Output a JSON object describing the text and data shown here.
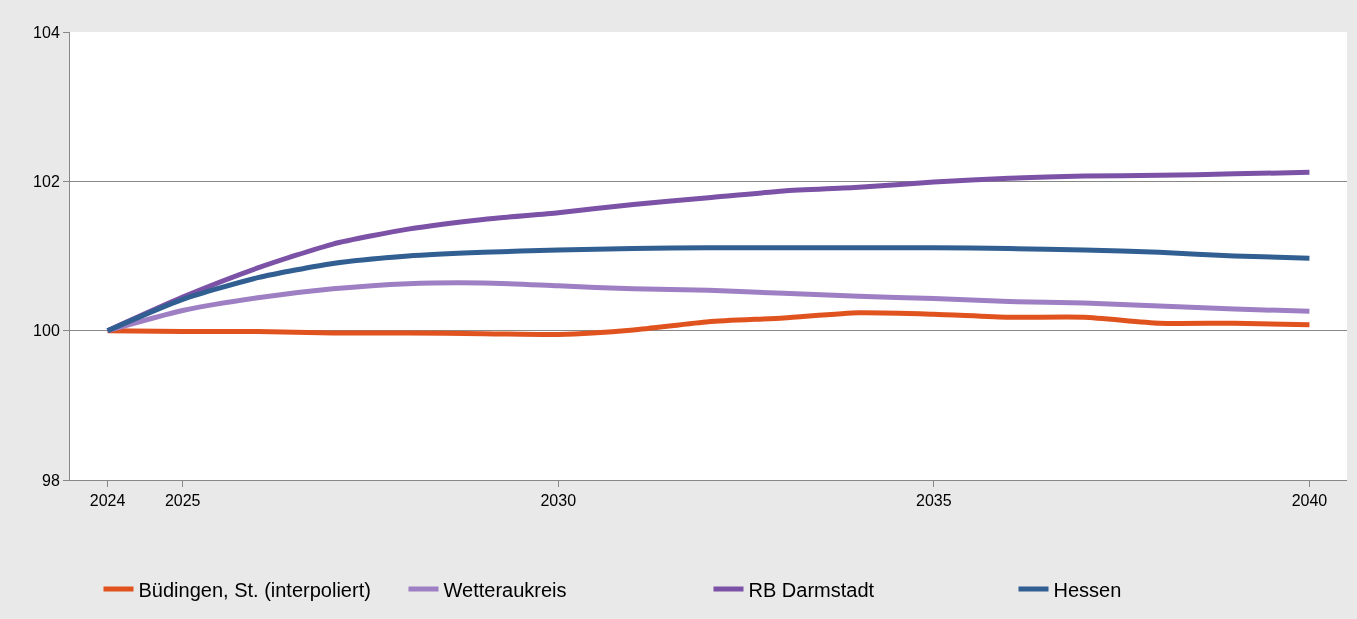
{
  "chart_data": {
    "type": "line",
    "x": [
      2024,
      2025,
      2026,
      2027,
      2028,
      2029,
      2030,
      2031,
      2032,
      2033,
      2034,
      2035,
      2036,
      2037,
      2038,
      2039,
      2040
    ],
    "series": [
      {
        "name": "Büdingen, St. (interpoliert)",
        "color": "#e0531f",
        "values": [
          100,
          99.99,
          99.99,
          99.97,
          99.97,
          99.96,
          99.95,
          100.01,
          100.12,
          100.17,
          100.24,
          100.22,
          100.18,
          100.18,
          100.1,
          100.1,
          100.08
        ]
      },
      {
        "name": "Wetteraukreis",
        "color": "#9e7fc3",
        "values": [
          100,
          100.27,
          100.44,
          100.56,
          100.63,
          100.64,
          100.6,
          100.56,
          100.54,
          100.5,
          100.46,
          100.43,
          100.39,
          100.37,
          100.33,
          100.29,
          100.26
        ]
      },
      {
        "name": "RB Darmstadt",
        "color": "#7b52a6",
        "values": [
          100,
          100.45,
          100.84,
          101.16,
          101.36,
          101.49,
          101.58,
          101.69,
          101.78,
          101.87,
          101.92,
          101.99,
          102.04,
          102.07,
          102.08,
          102.1,
          102.12
        ]
      },
      {
        "name": "Hessen",
        "color": "#325f92",
        "values": [
          100,
          100.42,
          100.71,
          100.9,
          101.0,
          101.05,
          101.08,
          101.1,
          101.11,
          101.11,
          101.11,
          101.11,
          101.1,
          101.08,
          101.05,
          101.0,
          100.97
        ]
      }
    ],
    "xlim": [
      2023.5,
      2040.5
    ],
    "xticks": [
      2024,
      2025,
      2030,
      2035,
      2040
    ],
    "ylim": [
      98,
      104
    ],
    "yticks": [
      98,
      100,
      102,
      104
    ],
    "grid": "y",
    "legend": "bottom",
    "marker": "none",
    "line_style": "solid"
  }
}
